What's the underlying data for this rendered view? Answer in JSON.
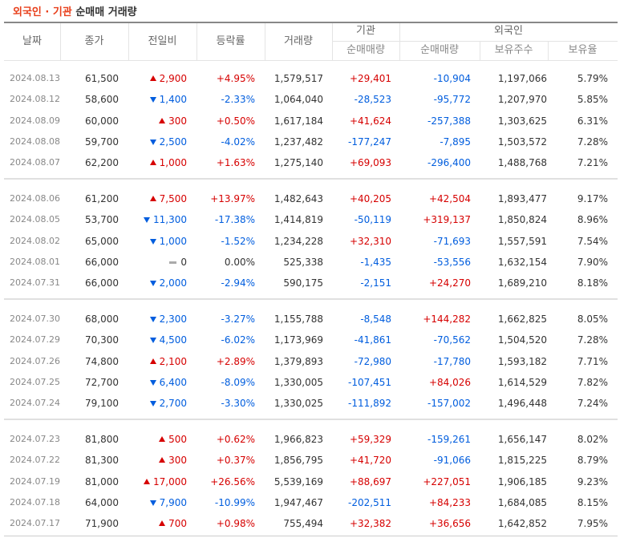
{
  "title": {
    "part1": "외국인 · 기관",
    "part2": "순매매 거래량"
  },
  "table": {
    "columns": [
      "날짜",
      "종가",
      "전일비",
      "등락률",
      "거래량"
    ],
    "groups_header": [
      "기관",
      "외국인"
    ],
    "subcolumns": [
      "순매매량",
      "순매매량",
      "보유주수",
      "보유율"
    ],
    "groups": [
      [
        [
          "2024.08.13",
          "61,500",
          "2,900",
          "+4.95%",
          "1,579,517",
          "+29,401",
          "-10,904",
          "1,197,066",
          "5.79%"
        ],
        [
          "2024.08.12",
          "58,600",
          "1,400",
          "-2.33%",
          "1,064,040",
          "-28,523",
          "-95,772",
          "1,207,970",
          "5.85%"
        ],
        [
          "2024.08.09",
          "60,000",
          "300",
          "+0.50%",
          "1,617,184",
          "+41,624",
          "-257,388",
          "1,303,625",
          "6.31%"
        ],
        [
          "2024.08.08",
          "59,700",
          "2,500",
          "-4.02%",
          "1,237,482",
          "-177,247",
          "-7,895",
          "1,503,572",
          "7.28%"
        ],
        [
          "2024.08.07",
          "62,200",
          "1,000",
          "+1.63%",
          "1,275,140",
          "+69,093",
          "-296,400",
          "1,488,768",
          "7.21%"
        ]
      ],
      [
        [
          "2024.08.06",
          "61,200",
          "7,500",
          "+13.97%",
          "1,482,643",
          "+40,205",
          "+42,504",
          "1,893,477",
          "9.17%"
        ],
        [
          "2024.08.05",
          "53,700",
          "11,300",
          "-17.38%",
          "1,414,819",
          "-50,119",
          "+319,137",
          "1,850,824",
          "8.96%"
        ],
        [
          "2024.08.02",
          "65,000",
          "1,000",
          "-1.52%",
          "1,234,228",
          "+32,310",
          "-71,693",
          "1,557,591",
          "7.54%"
        ],
        [
          "2024.08.01",
          "66,000",
          "0",
          "0.00%",
          "525,338",
          "-1,435",
          "-53,556",
          "1,632,154",
          "7.90%"
        ],
        [
          "2024.07.31",
          "66,000",
          "2,000",
          "-2.94%",
          "590,175",
          "-2,151",
          "+24,270",
          "1,689,210",
          "8.18%"
        ]
      ],
      [
        [
          "2024.07.30",
          "68,000",
          "2,300",
          "-3.27%",
          "1,155,788",
          "-8,548",
          "+144,282",
          "1,662,825",
          "8.05%"
        ],
        [
          "2024.07.29",
          "70,300",
          "4,500",
          "-6.02%",
          "1,173,969",
          "-41,861",
          "-70,562",
          "1,504,520",
          "7.28%"
        ],
        [
          "2024.07.26",
          "74,800",
          "2,100",
          "+2.89%",
          "1,379,893",
          "-72,980",
          "-17,780",
          "1,593,182",
          "7.71%"
        ],
        [
          "2024.07.25",
          "72,700",
          "6,400",
          "-8.09%",
          "1,330,005",
          "-107,451",
          "+84,026",
          "1,614,529",
          "7.82%"
        ],
        [
          "2024.07.24",
          "79,100",
          "2,700",
          "-3.30%",
          "1,330,025",
          "-111,892",
          "-157,002",
          "1,496,448",
          "7.24%"
        ]
      ],
      [
        [
          "2024.07.23",
          "81,800",
          "500",
          "+0.62%",
          "1,966,823",
          "+59,329",
          "-159,261",
          "1,656,147",
          "8.02%"
        ],
        [
          "2024.07.22",
          "81,300",
          "300",
          "+0.37%",
          "1,856,795",
          "+41,720",
          "-91,066",
          "1,815,225",
          "8.79%"
        ],
        [
          "2024.07.19",
          "81,000",
          "17,000",
          "+26.56%",
          "5,539,169",
          "+88,697",
          "+227,051",
          "1,906,185",
          "9.23%"
        ],
        [
          "2024.07.18",
          "64,000",
          "7,900",
          "-10.99%",
          "1,947,467",
          "-202,511",
          "+84,233",
          "1,684,085",
          "8.15%"
        ],
        [
          "2024.07.17",
          "71,900",
          "700",
          "+0.98%",
          "755,494",
          "+32,382",
          "+36,656",
          "1,642,852",
          "7.95%"
        ]
      ]
    ]
  }
}
